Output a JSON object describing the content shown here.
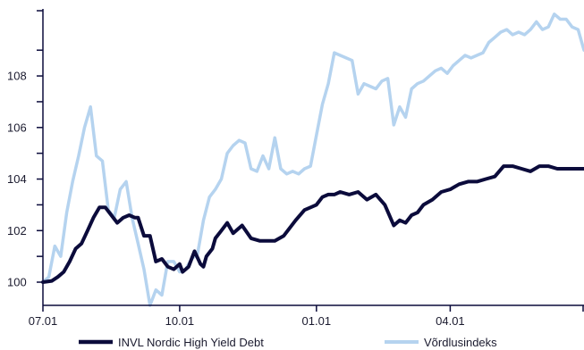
{
  "chart_data": {
    "type": "line",
    "title": "",
    "xlabel": "",
    "ylabel": "",
    "x_tick_labels": [
      "07.01",
      "10.01",
      "01.01",
      "04.01"
    ],
    "x_tick_positions": [
      0,
      92,
      184,
      274
    ],
    "x_range": [
      0,
      364
    ],
    "y_ticks": [
      100,
      102,
      104,
      106,
      108
    ],
    "ylim": [
      99.1,
      110.6
    ],
    "grid": false,
    "legend_position": "bottom",
    "colors": {
      "INVL Nordic High Yield Debt": "#0b0b3b",
      "Võrdlusindeks": "#b5d3ef",
      "axis": "#0b0b3b"
    },
    "series": [
      {
        "name": "INVL Nordic High Yield Debt",
        "x": [
          0,
          6,
          10,
          14,
          18,
          22,
          26,
          30,
          34,
          38,
          42,
          46,
          50,
          54,
          58,
          62,
          64,
          68,
          72,
          76,
          80,
          84,
          88,
          92,
          94,
          98,
          102,
          106,
          108,
          110,
          114,
          116,
          120,
          124,
          128,
          134,
          140,
          146,
          150,
          156,
          162,
          166,
          170,
          176,
          180,
          184,
          188,
          192,
          196,
          200,
          206,
          212,
          218,
          224,
          230,
          236,
          240,
          244,
          248,
          252,
          256,
          262,
          268,
          274,
          280,
          286,
          292,
          298,
          304,
          310,
          316,
          322,
          328,
          334,
          340,
          346,
          352,
          356,
          364
        ],
        "values": [
          100.0,
          100.05,
          100.2,
          100.4,
          100.8,
          101.3,
          101.5,
          102.0,
          102.5,
          102.9,
          102.9,
          102.6,
          102.3,
          102.5,
          102.6,
          102.5,
          102.5,
          101.8,
          101.8,
          100.8,
          100.9,
          100.6,
          100.5,
          100.7,
          100.4,
          100.6,
          101.2,
          100.7,
          100.6,
          101.0,
          101.3,
          101.7,
          102.0,
          102.3,
          101.9,
          102.2,
          101.7,
          101.6,
          101.6,
          101.6,
          101.8,
          102.1,
          102.4,
          102.8,
          102.9,
          103.0,
          103.3,
          103.4,
          103.4,
          103.5,
          103.4,
          103.5,
          103.2,
          103.4,
          103.0,
          102.2,
          102.4,
          102.3,
          102.6,
          102.7,
          103.0,
          103.2,
          103.5,
          103.6,
          103.8,
          103.9,
          103.9,
          104.0,
          104.1,
          104.5,
          104.5,
          104.4,
          104.3,
          104.5,
          104.5,
          104.4,
          104.4,
          104.4,
          104.4
        ]
      },
      {
        "name": "Võrdlusindeks",
        "x": [
          0,
          4,
          8,
          12,
          16,
          20,
          24,
          28,
          32,
          36,
          40,
          44,
          48,
          52,
          56,
          60,
          64,
          68,
          72,
          76,
          80,
          84,
          88,
          92,
          96,
          100,
          104,
          108,
          112,
          116,
          120,
          124,
          128,
          132,
          136,
          140,
          144,
          148,
          152,
          156,
          160,
          164,
          168,
          172,
          176,
          180,
          184,
          188,
          192,
          196,
          200,
          204,
          208,
          212,
          216,
          220,
          224,
          228,
          232,
          236,
          240,
          244,
          248,
          252,
          256,
          260,
          264,
          268,
          272,
          276,
          280,
          284,
          288,
          292,
          296,
          300,
          304,
          308,
          312,
          316,
          320,
          324,
          328,
          332,
          336,
          340,
          344,
          348,
          352,
          356,
          360,
          364
        ],
        "values": [
          100.0,
          100.2,
          101.4,
          101.0,
          102.7,
          103.9,
          104.9,
          106.0,
          106.8,
          104.9,
          104.7,
          102.8,
          102.5,
          103.6,
          103.9,
          102.5,
          101.5,
          100.5,
          99.1,
          99.7,
          99.5,
          100.8,
          100.8,
          100.4,
          100.5,
          100.9,
          101.1,
          102.4,
          103.3,
          103.6,
          104.0,
          105.0,
          105.3,
          105.5,
          105.4,
          104.4,
          104.3,
          104.9,
          104.4,
          105.6,
          104.4,
          104.2,
          104.3,
          104.2,
          104.4,
          104.5,
          105.7,
          106.9,
          107.7,
          108.9,
          108.8,
          108.7,
          108.6,
          107.3,
          107.7,
          107.6,
          107.5,
          107.8,
          107.9,
          106.1,
          106.8,
          106.4,
          107.5,
          107.7,
          107.8,
          108.0,
          108.2,
          108.3,
          108.1,
          108.4,
          108.6,
          108.8,
          108.7,
          108.8,
          108.9,
          109.3,
          109.5,
          109.7,
          109.8,
          109.6,
          109.7,
          109.6,
          109.8,
          110.1,
          109.8,
          109.9,
          110.4,
          110.2,
          110.2,
          109.9,
          109.8,
          109.0
        ]
      }
    ]
  }
}
